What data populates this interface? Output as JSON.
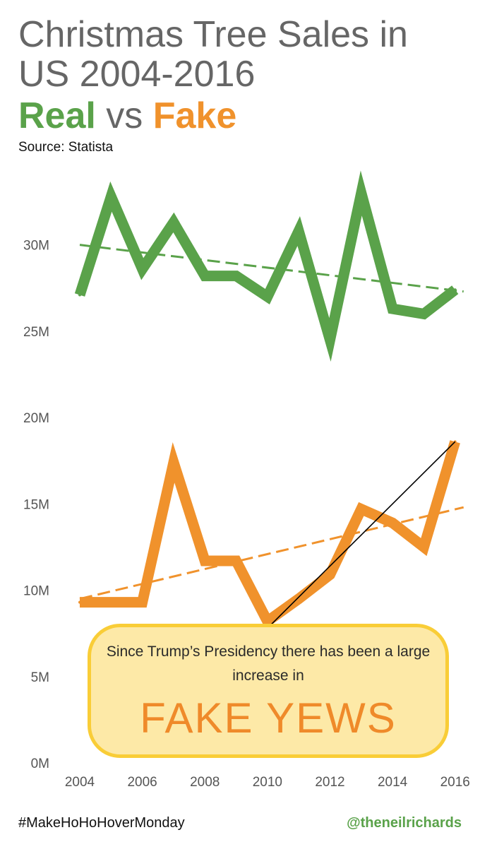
{
  "header": {
    "title_line1": "Christmas Tree Sales in",
    "title_line2": "US 2004-2016",
    "subtitle_real": "Real",
    "subtitle_vs": "vs",
    "subtitle_fake": "Fake",
    "source": "Source: Statista"
  },
  "callout": {
    "text": "Since Trump’s Presidency there has been a large increase in",
    "headline": "FAKE YEWS",
    "fill_color": "#fde9a7",
    "border_color": "#f9cd37"
  },
  "footer": {
    "hashtag": "#MakeHoHoHoverMonday",
    "handle": "@theneilrichards"
  },
  "chart_data": {
    "type": "line",
    "x": [
      2004,
      2005,
      2006,
      2007,
      2008,
      2009,
      2010,
      2011,
      2012,
      2013,
      2014,
      2015,
      2016
    ],
    "xlim": [
      2003.3,
      2016.3
    ],
    "ylim": [
      0,
      36
    ],
    "x_ticks": [
      2004,
      2006,
      2008,
      2010,
      2012,
      2014,
      2016
    ],
    "x_tick_labels": [
      "2004",
      "2006",
      "2008",
      "2010",
      "2012",
      "2014",
      "2016"
    ],
    "y_ticks": [
      0,
      5,
      10,
      15,
      20,
      25,
      30
    ],
    "y_tick_labels": [
      "0M",
      "5M",
      "10M",
      "15M",
      "20M",
      "25M",
      "30M"
    ],
    "grid": false,
    "series": [
      {
        "name": "Real",
        "color": "#5aa24a",
        "values": [
          27.1,
          32.8,
          28.6,
          31.3,
          28.2,
          28.2,
          27.0,
          30.8,
          24.5,
          33.0,
          26.3,
          26.0,
          27.4
        ],
        "trend": [
          30.0,
          27.3
        ],
        "trend_style": "dashed"
      },
      {
        "name": "Fake",
        "color": "#f0922c",
        "values": [
          9.3,
          9.3,
          9.3,
          17.4,
          11.7,
          11.7,
          8.2,
          9.5,
          10.9,
          14.7,
          13.9,
          12.5,
          18.6
        ],
        "trend": [
          9.5,
          14.8
        ],
        "trend_style": "dashed"
      }
    ],
    "annotation_line": {
      "from": [
        2010,
        7.8
      ],
      "to": [
        2016,
        18.6
      ],
      "color": "#000000"
    }
  }
}
